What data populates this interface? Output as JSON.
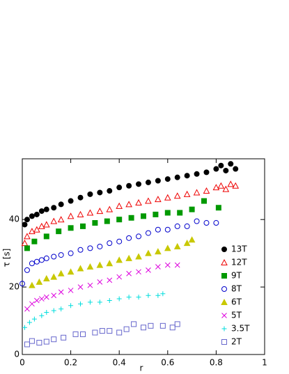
{
  "chart_data": {
    "type": "scatter",
    "xlabel": "r",
    "ylabel": "τ [s]",
    "xlim": [
      0,
      1
    ],
    "ylim": [
      0,
      58
    ],
    "xticks": [
      0,
      0.2,
      0.4,
      0.6,
      0.8,
      1
    ],
    "yticks": [
      0,
      20,
      40
    ],
    "legend": "lower right",
    "series": [
      {
        "name": "13T",
        "color": "#000000",
        "marker": "circle",
        "x": [
          0.01,
          0.02,
          0.04,
          0.06,
          0.08,
          0.1,
          0.13,
          0.16,
          0.2,
          0.24,
          0.28,
          0.32,
          0.36,
          0.4,
          0.44,
          0.48,
          0.52,
          0.56,
          0.6,
          0.64,
          0.68,
          0.72,
          0.76,
          0.8,
          0.82,
          0.84,
          0.86,
          0.88
        ],
        "values": [
          38.5,
          40,
          41,
          41.5,
          42.5,
          43,
          43.5,
          44.5,
          45.5,
          46.5,
          47.5,
          48,
          48.5,
          49.5,
          50,
          50.5,
          51,
          51.5,
          52,
          52.5,
          53,
          53.5,
          54,
          55,
          56,
          54.5,
          56.5,
          55
        ]
      },
      {
        "name": "12T",
        "color": "#ee0000",
        "marker": "triangle-open",
        "x": [
          0.01,
          0.02,
          0.04,
          0.06,
          0.08,
          0.1,
          0.13,
          0.16,
          0.2,
          0.24,
          0.28,
          0.32,
          0.36,
          0.4,
          0.44,
          0.48,
          0.52,
          0.56,
          0.6,
          0.64,
          0.68,
          0.72,
          0.76,
          0.8,
          0.82,
          0.84,
          0.86,
          0.88
        ],
        "values": [
          33,
          35,
          36.5,
          37,
          38,
          38.5,
          39.5,
          40,
          41,
          41.5,
          42,
          42.5,
          43,
          44,
          44.5,
          45,
          45.5,
          46,
          46.5,
          47,
          47.5,
          48,
          48.5,
          49.5,
          50,
          49,
          50.5,
          50
        ]
      },
      {
        "name": "9T",
        "color": "#009900",
        "marker": "square",
        "x": [
          0.02,
          0.05,
          0.1,
          0.15,
          0.2,
          0.25,
          0.3,
          0.35,
          0.4,
          0.45,
          0.5,
          0.55,
          0.6,
          0.65,
          0.7,
          0.75,
          0.81
        ],
        "values": [
          31.5,
          33.5,
          35,
          36.5,
          37.5,
          38,
          39,
          39.5,
          40,
          40.5,
          41,
          41.5,
          42,
          42,
          43,
          45.5,
          43.5
        ]
      },
      {
        "name": "8T",
        "color": "#0000cc",
        "marker": "circle-open",
        "x": [
          0,
          0.02,
          0.04,
          0.06,
          0.08,
          0.1,
          0.13,
          0.16,
          0.2,
          0.24,
          0.28,
          0.32,
          0.36,
          0.4,
          0.44,
          0.48,
          0.52,
          0.56,
          0.6,
          0.64,
          0.68,
          0.72,
          0.76,
          0.8
        ],
        "values": [
          21,
          25,
          27,
          27.5,
          28,
          28.5,
          29,
          29.5,
          30,
          31,
          31.5,
          32,
          33,
          33.5,
          34.5,
          35,
          36,
          37,
          37,
          38,
          38,
          39.5,
          39,
          39
        ]
      },
      {
        "name": "6T",
        "color": "#c8c800",
        "marker": "triangle",
        "x": [
          0.04,
          0.07,
          0.1,
          0.13,
          0.16,
          0.2,
          0.24,
          0.28,
          0.32,
          0.36,
          0.4,
          0.44,
          0.48,
          0.52,
          0.56,
          0.6,
          0.64,
          0.68,
          0.7
        ],
        "values": [
          20.5,
          21.5,
          22.5,
          23,
          24,
          24.5,
          25.5,
          26,
          26.5,
          27,
          28,
          28.5,
          29,
          30,
          30.5,
          31.5,
          32,
          33,
          34
        ]
      },
      {
        "name": "5T",
        "color": "#dd00dd",
        "marker": "x",
        "x": [
          0.02,
          0.04,
          0.06,
          0.08,
          0.1,
          0.13,
          0.16,
          0.2,
          0.24,
          0.28,
          0.32,
          0.36,
          0.4,
          0.44,
          0.48,
          0.52,
          0.56,
          0.6,
          0.64
        ],
        "values": [
          13.5,
          15,
          16,
          16.5,
          17,
          17.5,
          18.5,
          19,
          20,
          20.5,
          21.5,
          22,
          23,
          24,
          24.5,
          25,
          26,
          26.5,
          26.5
        ]
      },
      {
        "name": "3.5T",
        "color": "#00dddd",
        "marker": "plus",
        "x": [
          0.01,
          0.03,
          0.05,
          0.08,
          0.1,
          0.13,
          0.16,
          0.2,
          0.24,
          0.28,
          0.32,
          0.36,
          0.4,
          0.44,
          0.48,
          0.52,
          0.56,
          0.58
        ],
        "values": [
          8,
          9.5,
          10.5,
          11.5,
          12.5,
          13,
          13.5,
          14.5,
          15,
          15.5,
          15.5,
          16,
          16.5,
          17,
          17,
          17.5,
          17.5,
          18
        ]
      },
      {
        "name": "2T",
        "color": "#6666cc",
        "marker": "square-open",
        "x": [
          0.02,
          0.04,
          0.07,
          0.1,
          0.13,
          0.17,
          0.22,
          0.25,
          0.3,
          0.33,
          0.36,
          0.4,
          0.43,
          0.46,
          0.5,
          0.53,
          0.58,
          0.62,
          0.64
        ],
        "values": [
          3,
          4,
          3.5,
          3.8,
          4.5,
          5,
          6,
          6,
          6.5,
          7,
          7,
          6.5,
          7.5,
          9,
          8,
          8.5,
          8.5,
          8,
          9
        ]
      }
    ]
  }
}
